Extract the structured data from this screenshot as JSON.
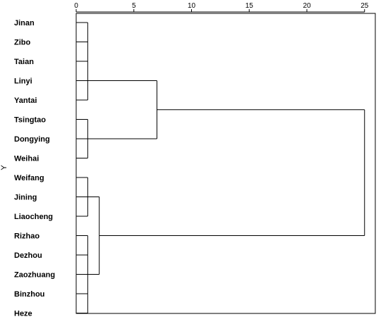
{
  "chart_data": {
    "type": "dendrogram",
    "orientation": "horizontal",
    "ylabel": "Y",
    "x_axis": {
      "min": 0,
      "max": 25,
      "ticks": [
        0,
        5,
        10,
        15,
        20,
        25
      ],
      "position": "top"
    },
    "leaves": [
      "Jinan",
      "Zibo",
      "Taian",
      "Linyi",
      "Yantai",
      "Tsingtao",
      "Dongying",
      "Weihai",
      "Weifang",
      "Jining",
      "Liaocheng",
      "Rizhao",
      "Dezhou",
      "Zaozhuang",
      "Binzhou",
      "Heze"
    ],
    "merges": [
      {
        "left": [
          "Jinan",
          "Zibo",
          "Taian",
          "Linyi",
          "Yantai"
        ],
        "right": [
          "Tsingtao",
          "Dongying",
          "Weihai"
        ],
        "height": 7
      },
      {
        "left": [
          "Jinan",
          "Zibo",
          "Taian",
          "Linyi",
          "Yantai",
          "Tsingtao",
          "Dongying",
          "Weihai"
        ],
        "right": [
          "Weifang",
          "Jining",
          "Liaocheng",
          "Rizhao",
          "Dezhou",
          "Zaozhuang",
          "Binzhou",
          "Heze"
        ],
        "height": 25
      },
      {
        "left": [
          "Weifang",
          "Jining",
          "Liaocheng"
        ],
        "right": [
          "Rizhao",
          "Dezhou",
          "Zaozhuang",
          "Binzhou",
          "Heze"
        ],
        "height": 2
      }
    ],
    "base_level": 1,
    "grid": false,
    "legend": "none"
  }
}
